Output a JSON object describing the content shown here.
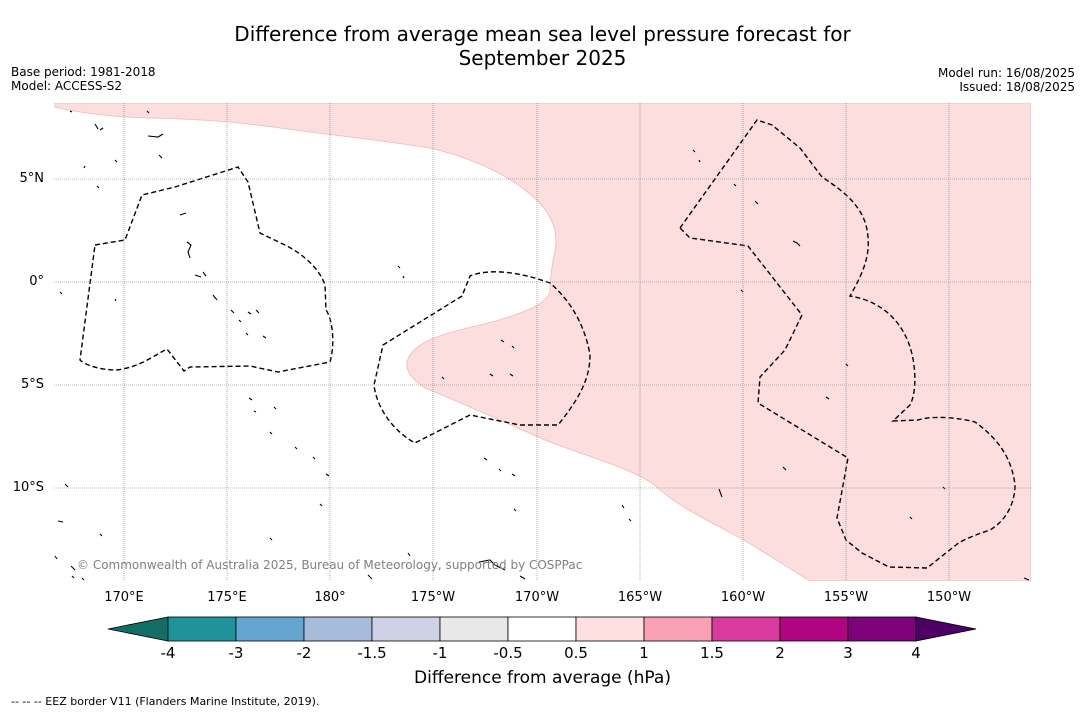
{
  "title": {
    "line1": "Difference from average mean sea level pressure forecast for",
    "line2": "September 2025"
  },
  "meta": {
    "base_period": "Base period: 1981-2018",
    "model": "Model: ACCESS-S2",
    "model_run": "Model run: 16/08/2025",
    "issued": "Issued: 18/08/2025"
  },
  "axes": {
    "lat_labels": [
      "5°N",
      "0°",
      "5°S",
      "10°S"
    ],
    "lon_labels": [
      "170°E",
      "175°E",
      "180°",
      "175°W",
      "170°W",
      "165°W",
      "160°W",
      "155°W",
      "150°W"
    ]
  },
  "copyright": "© Commonwealth of Australia 2025, Bureau of Meteorology, supported by COSPPac",
  "colorbar": {
    "ticks": [
      "-4",
      "-3",
      "-2",
      "-1.5",
      "-1",
      "-0.5",
      "0.5",
      "1",
      "1.5",
      "2",
      "3",
      "4"
    ],
    "colors": [
      "#126e64",
      "#20939a",
      "#65a6d0",
      "#a7bcdb",
      "#cfd1e8",
      "#e8e8e8",
      "#ffffff",
      "#fde0df",
      "#f9a0b5",
      "#d83a9e",
      "#b00583",
      "#7e037b",
      "#4c0066"
    ],
    "label": "Difference from average (hPa)"
  },
  "legend_note": "--  --  -- EEZ border V11 (Flanders Marine Institute, 2019).",
  "colors": {
    "anomaly_fill": "#fddede",
    "grid": "#777777"
  }
}
